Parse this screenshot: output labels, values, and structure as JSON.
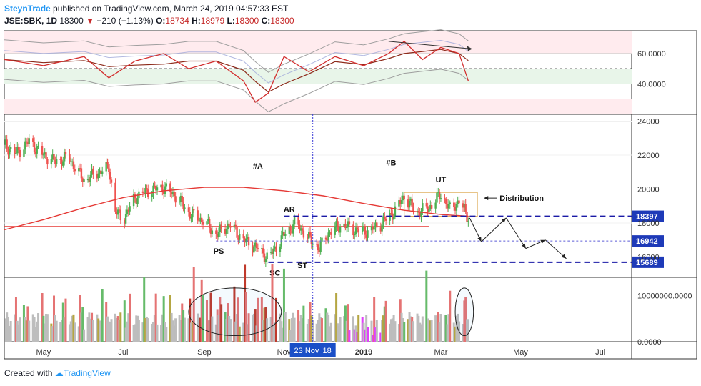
{
  "header": {
    "author": "SteynTrade",
    "published_text": "published on TradingView.com, March 24, 2019 04:57:33 EST",
    "symbol": "JSE:SBK, 1D",
    "last": "18300",
    "change": "−210 (−1.13%)",
    "o_label": "O:",
    "o_value": "18734",
    "h_label": "H:",
    "h_value": "18979",
    "l_label": "L:",
    "l_value": "18300",
    "c_label": "C:",
    "c_value": "18300"
  },
  "footer": {
    "created_with": "Created with",
    "brand": "TradingView"
  },
  "colors": {
    "up": "#4caf50",
    "down": "#ef5350",
    "ma": "#e53935",
    "rsi": "#d32f2f",
    "band": "#9e9e9e",
    "support": "#1a1aa6",
    "crosshair": "#3d3dd6",
    "vol_up": "#66bb6a",
    "vol_down": "#e57373",
    "vol_neutral": "#bdbdbd",
    "vol_magenta": "#e040fb"
  },
  "chart_data": {
    "type": "candlestick",
    "price_axis": {
      "ticks": [
        "24000",
        "22000",
        "20000",
        "18000",
        "16000"
      ],
      "ylim": [
        14800,
        24400
      ]
    },
    "rsi_axis": {
      "ticks": [
        "60.0000",
        "40.0000"
      ],
      "ylim": [
        20,
        75
      ],
      "overbought": 60,
      "oversold": 40,
      "mid": 50
    },
    "volume_axis": {
      "ticks": [
        "10000000.0000",
        "0.0000"
      ],
      "ylim": [
        0,
        14000000
      ]
    },
    "x_labels": [
      "May",
      "Jul",
      "Sep",
      "Nov",
      "2019",
      "Mar",
      "May",
      "Jul"
    ],
    "crosshair_date": "23 Nov '18",
    "close_path": [
      [
        "2018-04-01",
        22600
      ],
      [
        "2018-04-10",
        22100
      ],
      [
        "2018-04-20",
        22800
      ],
      [
        "2018-05-01",
        22000
      ],
      [
        "2018-05-10",
        21600
      ],
      [
        "2018-05-20",
        21900
      ],
      [
        "2018-06-01",
        20500
      ],
      [
        "2018-06-10",
        20900
      ],
      [
        "2018-06-20",
        21300
      ],
      [
        "2018-06-25",
        18700
      ],
      [
        "2018-07-01",
        18200
      ],
      [
        "2018-07-10",
        19500
      ],
      [
        "2018-07-20",
        19900
      ],
      [
        "2018-08-01",
        20100
      ],
      [
        "2018-08-10",
        19600
      ],
      [
        "2018-08-20",
        18600
      ],
      [
        "2018-09-01",
        18100
      ],
      [
        "2018-09-10",
        17300
      ],
      [
        "2018-09-20",
        17900
      ],
      [
        "2018-10-01",
        17000
      ],
      [
        "2018-10-10",
        16600
      ],
      [
        "2018-10-20",
        15900
      ],
      [
        "2018-11-01",
        17300
      ],
      [
        "2018-11-10",
        18000
      ],
      [
        "2018-11-20",
        17100
      ],
      [
        "2018-11-28",
        16500
      ],
      [
        "2018-12-05",
        17400
      ],
      [
        "2018-12-15",
        17900
      ],
      [
        "2018-12-25",
        17600
      ],
      [
        "2019-01-05",
        17500
      ],
      [
        "2019-01-15",
        18000
      ],
      [
        "2019-01-25",
        18700
      ],
      [
        "2019-02-01",
        19600
      ],
      [
        "2019-02-10",
        18600
      ],
      [
        "2019-02-20",
        18900
      ],
      [
        "2019-03-01",
        19700
      ],
      [
        "2019-03-08",
        18800
      ],
      [
        "2019-03-15",
        19300
      ],
      [
        "2019-03-22",
        18300
      ]
    ],
    "ma_path": [
      [
        "2018-04-01",
        17600
      ],
      [
        "2018-05-01",
        18200
      ],
      [
        "2018-06-01",
        18900
      ],
      [
        "2018-07-01",
        19500
      ],
      [
        "2018-08-01",
        19900
      ],
      [
        "2018-09-01",
        20100
      ],
      [
        "2018-10-01",
        20100
      ],
      [
        "2018-11-01",
        19900
      ],
      [
        "2018-12-01",
        19600
      ],
      [
        "2019-01-01",
        19150
      ],
      [
        "2019-02-01",
        18750
      ],
      [
        "2019-03-01",
        18500
      ],
      [
        "2019-03-22",
        18400
      ]
    ],
    "ref_line": 17800,
    "levels": [
      {
        "value": 18397,
        "label": "18397"
      },
      {
        "value": 16942,
        "label": "16942"
      },
      {
        "value": 15689,
        "label": "15689"
      }
    ],
    "trading_range_box": {
      "start": "2019-02-01",
      "end": "2019-03-29",
      "top": 19800,
      "bottom": 18400
    },
    "annotations": [
      {
        "text": "#A",
        "date": "2018-10-12",
        "price": 21200
      },
      {
        "text": "#B",
        "date": "2019-01-22",
        "price": 21400
      },
      {
        "text": "UT",
        "date": "2019-03-01",
        "price": 20400
      },
      {
        "text": "Distribution",
        "date": "2019-04-15",
        "price": 19300
      },
      {
        "text": "AR",
        "date": "2018-11-05",
        "price": 18650
      },
      {
        "text": "PS",
        "date": "2018-09-12",
        "price": 16200
      },
      {
        "text": "ST",
        "date": "2018-11-15",
        "price": 15350
      },
      {
        "text": "SC",
        "date": "2018-10-25",
        "price": 14900
      }
    ],
    "projection_path": [
      [
        "2019-03-23",
        18300
      ],
      [
        "2019-04-01",
        16900
      ],
      [
        "2019-04-20",
        18300
      ],
      [
        "2019-05-05",
        16500
      ],
      [
        "2019-05-20",
        17000
      ],
      [
        "2019-06-05",
        15900
      ]
    ],
    "rsi_path": [
      [
        "2018-04-01",
        56
      ],
      [
        "2018-05-01",
        52
      ],
      [
        "2018-06-01",
        58
      ],
      [
        "2018-06-20",
        44
      ],
      [
        "2018-07-10",
        55
      ],
      [
        "2018-08-01",
        60
      ],
      [
        "2018-08-20",
        50
      ],
      [
        "2018-09-10",
        55
      ],
      [
        "2018-10-01",
        42
      ],
      [
        "2018-10-10",
        28
      ],
      [
        "2018-10-20",
        34
      ],
      [
        "2018-11-01",
        58
      ],
      [
        "2018-11-20",
        48
      ],
      [
        "2018-12-10",
        58
      ],
      [
        "2019-01-01",
        52
      ],
      [
        "2019-01-20",
        60
      ],
      [
        "2019-02-01",
        68
      ],
      [
        "2019-02-15",
        56
      ],
      [
        "2019-03-01",
        64
      ],
      [
        "2019-03-15",
        60
      ],
      [
        "2019-03-22",
        42
      ]
    ],
    "rsi_divergence": {
      "start": [
        "2019-01-20",
        68
      ],
      "end": [
        "2019-03-25",
        63
      ]
    },
    "volume": {
      "ellipses": [
        {
          "start": "2018-08-20",
          "end": "2018-10-30",
          "label": ""
        },
        {
          "start": "2019-03-12",
          "end": "2019-03-26",
          "label": ""
        }
      ]
    }
  }
}
